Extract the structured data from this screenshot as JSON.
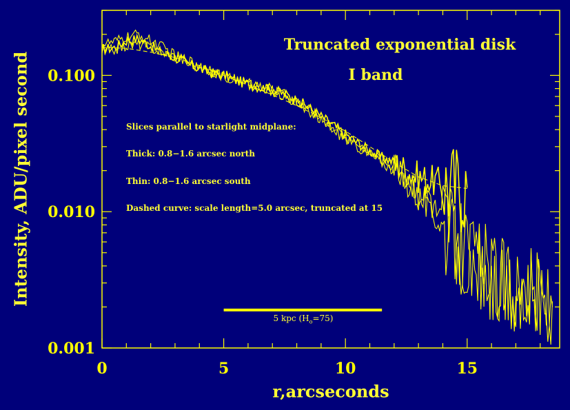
{
  "chart_data": {
    "type": "line",
    "title": "Truncated exponential disk",
    "subtitle": "I band",
    "xlabel": "r,arcseconds",
    "ylabel": "Intensity, ADU/pixel second",
    "xlim": [
      0,
      18.8
    ],
    "ylim": [
      0.001,
      0.3
    ],
    "yscale": "log",
    "x_ticks": [
      0,
      5,
      10,
      15
    ],
    "x_tick_labels": [
      "0",
      "5",
      "10",
      "15"
    ],
    "y_ticks": [
      0.001,
      0.01,
      0.1
    ],
    "y_tick_labels": [
      "0.001",
      "0.010",
      "0.100"
    ],
    "grid": false,
    "annotations": [
      "Slices parallel to starlight midplane:",
      "Thick: 0.8−1.6 arcsec north",
      "Thin:  0.8−1.6 arcsec south",
      "Dashed curve: scale length=5.0 arcsec, truncated at 15"
    ],
    "scale_bar": {
      "x_start": 5,
      "x_end": 11.5,
      "y": 0.0019,
      "label": "5 kpc (H",
      "label_sub": "o",
      "label_end": "=75)"
    },
    "series": [
      {
        "x": [
          0,
          0.5,
          1,
          1.5,
          2,
          2.5,
          3,
          3.5,
          4,
          4.5,
          5,
          5.5,
          6,
          6.5,
          7,
          7.5,
          8,
          8.5,
          9,
          9.5,
          10,
          10.5,
          11,
          11.5,
          12,
          12.5,
          13,
          13.5,
          14,
          14.5,
          15
        ],
        "y": [
          0.155,
          0.16,
          0.18,
          0.185,
          0.165,
          0.145,
          0.135,
          0.122,
          0.112,
          0.104,
          0.1,
          0.092,
          0.086,
          0.082,
          0.078,
          0.073,
          0.066,
          0.058,
          0.05,
          0.043,
          0.037,
          0.032,
          0.028,
          0.025,
          0.023,
          0.02,
          0.018,
          0.017,
          0.016,
          0.015,
          0.015
        ]
      },
      {
        "x": [
          0,
          0.5,
          1,
          1.5,
          2,
          2.5,
          3,
          3.5,
          4,
          4.5,
          5,
          5.5,
          6,
          6.5,
          7,
          7.5,
          8,
          8.5,
          9,
          9.5,
          10,
          10.5,
          11,
          11.5,
          12,
          12.5,
          13,
          13.5,
          14,
          14.5,
          15,
          15.5,
          16,
          16.5,
          17,
          17.5,
          18,
          18.5
        ],
        "y": [
          0.17,
          0.175,
          0.19,
          0.2,
          0.18,
          0.16,
          0.14,
          0.13,
          0.118,
          0.108,
          0.1,
          0.094,
          0.088,
          0.083,
          0.079,
          0.072,
          0.064,
          0.056,
          0.048,
          0.041,
          0.035,
          0.031,
          0.027,
          0.024,
          0.021,
          0.018,
          0.014,
          0.011,
          0.008,
          0.006,
          0.005,
          0.0042,
          0.0035,
          0.003,
          0.0028,
          0.0025,
          0.0023,
          0.0022
        ]
      },
      {
        "x": [
          0,
          0.5,
          1,
          1.5,
          2,
          2.5,
          3,
          3.5,
          4,
          4.5,
          5,
          5.5,
          6,
          6.5,
          7,
          7.5,
          8,
          8.5,
          9,
          9.5,
          10,
          10.5,
          11,
          11.5,
          12,
          12.5,
          13,
          13.5,
          14,
          14.5,
          15,
          15.5,
          16,
          16.5,
          17,
          17.5,
          18,
          18.5
        ],
        "y": [
          0.15,
          0.155,
          0.165,
          0.17,
          0.16,
          0.148,
          0.138,
          0.126,
          0.115,
          0.106,
          0.099,
          0.093,
          0.087,
          0.082,
          0.077,
          0.071,
          0.063,
          0.055,
          0.047,
          0.04,
          0.034,
          0.03,
          0.026,
          0.023,
          0.02,
          0.017,
          0.013,
          0.0105,
          0.0078,
          0.006,
          0.0048,
          0.004,
          0.0034,
          0.0029,
          0.0027,
          0.0024,
          0.0022,
          0.002
        ]
      },
      {
        "dashed": true,
        "x": [
          0,
          1,
          2,
          3,
          4,
          5,
          6,
          7,
          8,
          9,
          10,
          11,
          12,
          13,
          14,
          15
        ],
        "y": [
          0.16,
          0.158,
          0.148,
          0.135,
          0.118,
          0.1,
          0.085,
          0.072,
          0.06,
          0.049,
          0.039,
          0.03,
          0.023,
          0.018,
          0.0155,
          0.0148
        ]
      }
    ]
  }
}
